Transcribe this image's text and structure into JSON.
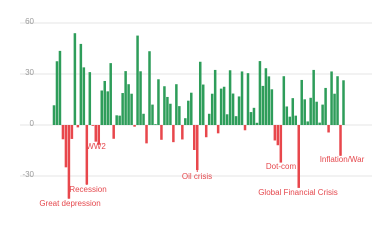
{
  "chart_data": {
    "type": "bar",
    "values": [
      11.6,
      37.5,
      43.6,
      -8.4,
      -24.9,
      -43.3,
      -8.2,
      54.0,
      -1.4,
      47.7,
      33.9,
      -35.0,
      31.1,
      -0.4,
      -9.8,
      -11.6,
      20.3,
      25.9,
      19.8,
      36.4,
      -8.1,
      5.7,
      5.5,
      18.8,
      31.7,
      24.0,
      18.4,
      -1.0,
      52.6,
      31.6,
      6.6,
      -10.8,
      43.4,
      12.0,
      0.5,
      26.9,
      -8.7,
      22.8,
      16.5,
      12.5,
      -10.1,
      24.0,
      11.1,
      -8.5,
      4.0,
      14.3,
      19.0,
      -14.7,
      -26.5,
      37.2,
      23.8,
      -7.2,
      6.6,
      18.4,
      32.4,
      -4.9,
      21.4,
      22.5,
      6.3,
      32.2,
      18.5,
      5.2,
      16.8,
      31.5,
      -3.1,
      30.5,
      7.6,
      10.1,
      1.3,
      37.6,
      23.0,
      33.4,
      28.6,
      21.0,
      -9.1,
      -11.9,
      -22.1,
      28.7,
      10.9,
      4.9,
      15.8,
      5.5,
      -37.0,
      26.5,
      15.1,
      2.1,
      16.0,
      32.4,
      13.7,
      1.4,
      12.0,
      21.8,
      -4.4,
      31.5,
      18.4,
      28.7,
      -18.1,
      26.3
    ],
    "colors": {
      "positive": "#2e9d5a",
      "negative": "#e8474c"
    },
    "ylim": [
      -55,
      70
    ],
    "yticks": [
      -30,
      0,
      30,
      60
    ],
    "grid": true,
    "annotations": [
      "Great depression",
      "Recession",
      "WW2",
      "Oil crisis",
      "Dot-com",
      "Global Financial Crisis",
      "Inflation/War"
    ]
  }
}
